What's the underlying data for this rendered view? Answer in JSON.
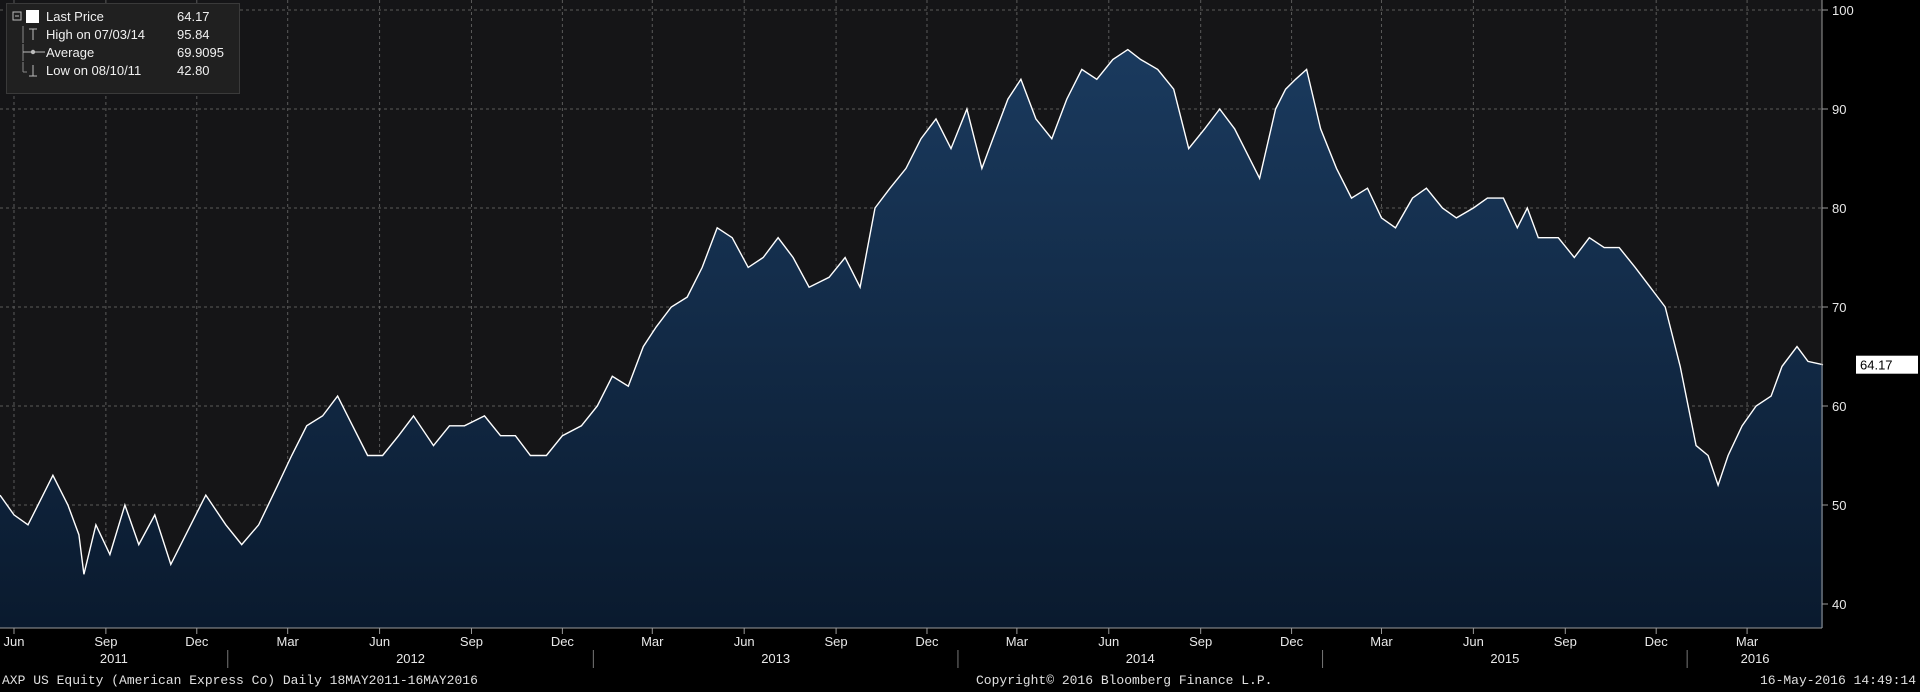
{
  "legend": {
    "rows": [
      {
        "label": "Last Price",
        "value": "64.17",
        "glyph": "box-icon"
      },
      {
        "label": "High on 07/03/14",
        "value": "95.84",
        "glyph": "high-marker-icon"
      },
      {
        "label": "Average",
        "value": "69.9095",
        "glyph": "average-marker-icon"
      },
      {
        "label": "Low on 08/10/11",
        "value": "42.80",
        "glyph": "low-marker-icon"
      }
    ]
  },
  "footer": {
    "left": "AXP US Equity (American Express Co)  Daily 18MAY2011-16MAY2016",
    "center": "Copyright© 2016 Bloomberg Finance L.P.",
    "right": "16-May-2016 14:49:14"
  },
  "colors": {
    "background": "#151517",
    "area_top": "#1a3a5e",
    "area_bottom": "#0a1a2e",
    "line": "#ffffff",
    "grid": "#5a5a5a"
  },
  "chart_data": {
    "type": "area",
    "title": "",
    "xlabel": "",
    "ylabel": "",
    "ylim": [
      38,
      101
    ],
    "yticks": [
      40,
      50,
      60,
      70,
      80,
      90,
      100
    ],
    "grid": true,
    "legend_position": "top-left",
    "last_price_label": "64.17",
    "month_ticks": [
      "Jun",
      "Sep",
      "Dec",
      "Mar",
      "Jun",
      "Sep",
      "Dec",
      "Mar",
      "Jun",
      "Sep",
      "Dec",
      "Mar",
      "Jun",
      "Sep",
      "Dec",
      "Mar",
      "Jun",
      "Sep",
      "Dec",
      "Mar"
    ],
    "year_labels": [
      "2011",
      "2012",
      "2013",
      "2014",
      "2015",
      "2016"
    ],
    "x_range": [
      "2011-05-18",
      "2016-05-16"
    ],
    "series": [
      {
        "x": [
          "2011-05-18",
          "2011-06-01",
          "2011-06-15",
          "2011-06-30",
          "2011-07-10",
          "2011-07-25",
          "2011-08-05",
          "2011-08-10",
          "2011-08-22",
          "2011-09-05",
          "2011-09-20",
          "2011-10-04",
          "2011-10-20",
          "2011-11-05",
          "2011-11-25",
          "2011-12-10",
          "2011-12-30",
          "2012-01-15",
          "2012-02-01",
          "2012-02-20",
          "2012-03-05",
          "2012-03-20",
          "2012-04-05",
          "2012-04-20",
          "2012-05-05",
          "2012-05-20",
          "2012-06-04",
          "2012-06-20",
          "2012-07-05",
          "2012-07-25",
          "2012-08-10",
          "2012-08-25",
          "2012-09-14",
          "2012-09-30",
          "2012-10-15",
          "2012-10-30",
          "2012-11-15",
          "2012-12-01",
          "2012-12-20",
          "2013-01-05",
          "2013-01-20",
          "2013-02-05",
          "2013-02-20",
          "2013-03-05",
          "2013-03-20",
          "2013-04-05",
          "2013-04-20",
          "2013-05-05",
          "2013-05-20",
          "2013-06-05",
          "2013-06-20",
          "2013-07-05",
          "2013-07-20",
          "2013-08-05",
          "2013-08-25",
          "2013-09-10",
          "2013-09-25",
          "2013-10-10",
          "2013-10-25",
          "2013-11-10",
          "2013-11-25",
          "2013-12-10",
          "2013-12-25",
          "2014-01-10",
          "2014-01-25",
          "2014-02-05",
          "2014-02-20",
          "2014-03-05",
          "2014-03-20",
          "2014-04-05",
          "2014-04-20",
          "2014-05-05",
          "2014-05-20",
          "2014-06-05",
          "2014-06-20",
          "2014-07-03",
          "2014-07-20",
          "2014-08-05",
          "2014-08-20",
          "2014-09-05",
          "2014-09-20",
          "2014-10-05",
          "2014-10-15",
          "2014-10-30",
          "2014-11-15",
          "2014-11-25",
          "2014-12-05",
          "2014-12-16",
          "2014-12-30",
          "2015-01-15",
          "2015-01-30",
          "2015-02-15",
          "2015-03-01",
          "2015-03-15",
          "2015-04-01",
          "2015-04-15",
          "2015-05-01",
          "2015-05-15",
          "2015-06-01",
          "2015-06-15",
          "2015-07-01",
          "2015-07-15",
          "2015-07-25",
          "2015-08-05",
          "2015-08-25",
          "2015-09-10",
          "2015-09-25",
          "2015-10-10",
          "2015-10-25",
          "2015-11-10",
          "2015-11-25",
          "2015-12-10",
          "2015-12-25",
          "2016-01-10",
          "2016-01-22",
          "2016-02-01",
          "2016-02-11",
          "2016-02-25",
          "2016-03-10",
          "2016-03-25",
          "2016-04-05",
          "2016-04-20",
          "2016-05-01",
          "2016-05-16"
        ],
        "y": [
          51,
          49,
          48,
          51,
          53,
          50,
          47,
          43,
          48,
          45,
          50,
          46,
          49,
          44,
          48,
          51,
          48,
          46,
          48,
          52,
          55,
          58,
          59,
          61,
          58,
          55,
          55,
          57,
          59,
          56,
          58,
          58,
          59,
          57,
          57,
          55,
          55,
          57,
          58,
          60,
          63,
          62,
          66,
          68,
          70,
          71,
          74,
          78,
          77,
          74,
          75,
          77,
          75,
          72,
          73,
          75,
          72,
          80,
          82,
          84,
          87,
          89,
          86,
          90,
          84,
          87,
          91,
          93,
          89,
          87,
          91,
          94,
          93,
          95,
          96,
          95,
          94,
          92,
          86,
          88,
          90,
          88,
          86,
          83,
          90,
          92,
          93,
          94,
          88,
          84,
          81,
          82,
          79,
          78,
          81,
          82,
          80,
          79,
          80,
          81,
          81,
          78,
          80,
          77,
          77,
          75,
          77,
          76,
          76,
          74,
          72,
          70,
          64,
          56,
          55,
          52,
          55,
          58,
          60,
          61,
          64,
          66,
          64.5,
          64.17
        ]
      }
    ]
  }
}
